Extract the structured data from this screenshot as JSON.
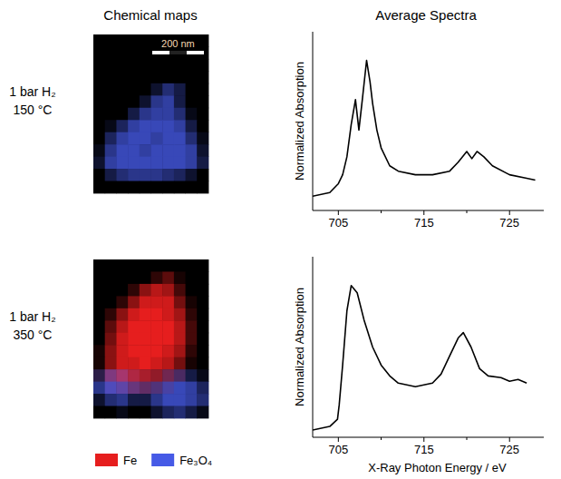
{
  "headers": [
    "Chemical maps",
    "Average Spectra"
  ],
  "rows": [
    {
      "label": [
        "1 bar H₂",
        "150 °C"
      ]
    },
    {
      "label": [
        "1 bar H₂",
        "350 °C"
      ]
    }
  ],
  "map_width_nm": 445,
  "scale_bar": {
    "label": "200 nm",
    "length": 200
  },
  "map_legend": [
    {
      "name": "Fe",
      "color": "#e61e1e"
    },
    {
      "name": "Fe₃O₄",
      "color": "#465ae6"
    }
  ],
  "maps": [
    {
      "fe": [
        [
          0,
          0,
          0,
          0,
          0,
          0,
          0,
          0,
          0,
          0
        ],
        [
          0,
          0,
          0,
          0,
          0,
          0,
          0,
          0,
          0,
          0
        ],
        [
          0,
          0,
          0,
          0,
          0,
          0,
          0,
          0,
          0,
          0
        ],
        [
          0,
          0,
          0,
          0,
          0,
          0,
          0,
          0,
          0,
          0
        ],
        [
          0,
          0,
          0,
          0,
          0,
          0,
          0,
          0,
          0,
          0
        ],
        [
          0,
          0,
          0,
          0,
          0,
          0,
          0,
          0,
          0,
          0
        ],
        [
          0,
          0,
          0,
          0,
          0,
          0,
          0,
          0,
          0,
          0
        ],
        [
          0,
          0,
          0,
          0,
          0,
          0,
          0,
          0,
          0,
          0
        ],
        [
          0,
          0,
          0,
          0,
          0,
          0,
          0,
          0,
          0,
          0
        ],
        [
          0,
          0,
          0,
          0,
          0,
          0,
          0,
          0,
          0,
          0
        ],
        [
          0,
          0,
          0,
          0,
          0,
          0,
          0,
          0,
          0,
          0
        ],
        [
          0,
          0,
          0,
          0,
          0,
          0,
          0,
          0,
          0,
          0
        ],
        [
          0,
          0,
          0,
          0,
          0,
          0,
          0,
          0,
          0,
          0
        ]
      ],
      "fe3o4": [
        [
          0,
          0,
          0,
          0,
          0,
          0,
          0,
          0,
          0,
          0
        ],
        [
          0,
          0,
          0,
          0,
          0,
          0,
          0,
          0,
          0,
          0
        ],
        [
          0,
          0,
          0,
          0,
          0,
          0,
          0,
          0,
          0,
          0
        ],
        [
          0,
          0,
          0,
          0,
          0,
          0,
          0,
          0,
          0,
          0
        ],
        [
          0,
          0,
          0,
          0,
          0,
          0.2,
          0.5,
          0.3,
          0,
          0
        ],
        [
          0,
          0,
          0,
          0,
          0.2,
          0.6,
          0.7,
          0.3,
          0,
          0
        ],
        [
          0,
          0,
          0,
          0.3,
          0.6,
          0.7,
          0.7,
          0.5,
          0.1,
          0
        ],
        [
          0,
          0.1,
          0.4,
          0.7,
          0.8,
          0.8,
          0.8,
          0.7,
          0.3,
          0
        ],
        [
          0,
          0.4,
          0.7,
          0.8,
          0.8,
          0.7,
          0.8,
          0.8,
          0.5,
          0.1
        ],
        [
          0.1,
          0.6,
          0.8,
          0.8,
          0.7,
          0.8,
          0.8,
          0.8,
          0.7,
          0.2
        ],
        [
          0.2,
          0.7,
          0.8,
          0.8,
          0.8,
          0.8,
          0.8,
          0.8,
          0.7,
          0.3
        ],
        [
          0,
          0.3,
          0.5,
          0.6,
          0.6,
          0.6,
          0.5,
          0.4,
          0.2,
          0
        ],
        [
          0,
          0,
          0,
          0,
          0,
          0,
          0,
          0,
          0,
          0
        ]
      ]
    },
    {
      "fe": [
        [
          0,
          0,
          0,
          0,
          0,
          0,
          0,
          0,
          0,
          0
        ],
        [
          0,
          0,
          0,
          0,
          0,
          0.2,
          0.4,
          0.1,
          0,
          0
        ],
        [
          0,
          0,
          0,
          0.2,
          0.6,
          0.8,
          0.7,
          0.3,
          0,
          0
        ],
        [
          0,
          0,
          0.2,
          0.6,
          0.9,
          0.9,
          0.9,
          0.5,
          0.1,
          0
        ],
        [
          0,
          0.2,
          0.6,
          0.9,
          1,
          1,
          0.9,
          0.7,
          0.2,
          0
        ],
        [
          0,
          0.4,
          0.8,
          1,
          1,
          1,
          1,
          0.8,
          0.3,
          0
        ],
        [
          0,
          0.5,
          0.9,
          1,
          1,
          1,
          1,
          0.8,
          0.3,
          0
        ],
        [
          0.1,
          0.6,
          0.9,
          1,
          1,
          1,
          0.9,
          0.7,
          0.2,
          0
        ],
        [
          0.1,
          0.6,
          0.9,
          0.9,
          1,
          0.9,
          0.8,
          0.5,
          0.1,
          0
        ],
        [
          0.1,
          0.4,
          0.6,
          0.7,
          0.7,
          0.6,
          0.4,
          0.2,
          0,
          0
        ],
        [
          0,
          0.1,
          0.2,
          0.3,
          0.3,
          0.2,
          0.1,
          0,
          0,
          0
        ],
        [
          0,
          0,
          0,
          0,
          0,
          0,
          0,
          0,
          0,
          0
        ],
        [
          0,
          0,
          0,
          0,
          0,
          0,
          0,
          0,
          0,
          0
        ]
      ],
      "fe3o4": [
        [
          0,
          0,
          0,
          0,
          0,
          0,
          0,
          0,
          0,
          0
        ],
        [
          0,
          0,
          0,
          0,
          0,
          0,
          0,
          0,
          0,
          0
        ],
        [
          0,
          0,
          0,
          0,
          0,
          0,
          0,
          0,
          0,
          0
        ],
        [
          0,
          0,
          0,
          0,
          0,
          0,
          0,
          0,
          0,
          0
        ],
        [
          0,
          0,
          0,
          0,
          0,
          0,
          0,
          0,
          0,
          0
        ],
        [
          0,
          0,
          0,
          0,
          0,
          0,
          0,
          0,
          0,
          0
        ],
        [
          0,
          0,
          0,
          0,
          0,
          0,
          0,
          0,
          0,
          0
        ],
        [
          0,
          0,
          0,
          0,
          0,
          0,
          0,
          0,
          0,
          0
        ],
        [
          0,
          0,
          0,
          0,
          0,
          0,
          0,
          0,
          0,
          0
        ],
        [
          0.3,
          0.5,
          0.4,
          0.2,
          0.1,
          0.1,
          0.3,
          0.4,
          0.3,
          0.1
        ],
        [
          0.6,
          0.8,
          0.7,
          0.5,
          0.4,
          0.5,
          0.7,
          0.8,
          0.7,
          0.4
        ],
        [
          0.2,
          0.5,
          0.6,
          0.3,
          0.3,
          0.6,
          0.8,
          0.8,
          0.7,
          0.5
        ],
        [
          0,
          0,
          0.1,
          0,
          0,
          0.2,
          0.4,
          0.5,
          0.3,
          0.1
        ]
      ]
    }
  ],
  "chart_data": [
    {
      "type": "line",
      "y_label": "Normalized Absorption",
      "x": [
        702,
        704,
        705,
        705.5,
        706,
        706.5,
        707,
        707.4,
        707.8,
        708.3,
        708.7,
        709,
        709.5,
        710,
        711,
        712,
        714,
        716,
        718,
        719,
        720,
        720.6,
        721.2,
        722,
        723,
        725,
        727,
        728
      ],
      "series": [
        {
          "color": "#000000",
          "values": [
            0.08,
            0.1,
            0.15,
            0.2,
            0.3,
            0.48,
            0.62,
            0.45,
            0.62,
            0.84,
            0.72,
            0.6,
            0.45,
            0.35,
            0.25,
            0.22,
            0.2,
            0.2,
            0.22,
            0.27,
            0.33,
            0.29,
            0.33,
            0.3,
            0.25,
            0.2,
            0.18,
            0.17
          ]
        }
      ],
      "xlim": [
        702,
        729
      ],
      "ylim": [
        0,
        1
      ],
      "xticks": [
        705,
        715,
        725
      ],
      "tick_labels": "x"
    },
    {
      "type": "line",
      "y_label": "Normalized Absorption",
      "x_label": "X-Ray Photon Energy / eV",
      "x": [
        702,
        704,
        704.9,
        705.1,
        705.5,
        706,
        706.5,
        707.2,
        708,
        709,
        710,
        711,
        712,
        714,
        716,
        717,
        718,
        719,
        719.6,
        720.5,
        721.5,
        722.5,
        724,
        725,
        726,
        727
      ],
      "series": [
        {
          "color": "#000000",
          "values": [
            0.04,
            0.06,
            0.1,
            0.18,
            0.4,
            0.7,
            0.84,
            0.8,
            0.65,
            0.5,
            0.4,
            0.34,
            0.3,
            0.28,
            0.3,
            0.35,
            0.45,
            0.55,
            0.58,
            0.5,
            0.38,
            0.34,
            0.33,
            0.31,
            0.32,
            0.3
          ]
        }
      ],
      "xlim": [
        702,
        729
      ],
      "ylim": [
        0,
        1
      ],
      "xticks": [
        705,
        715,
        725
      ],
      "tick_labels": "x"
    }
  ]
}
